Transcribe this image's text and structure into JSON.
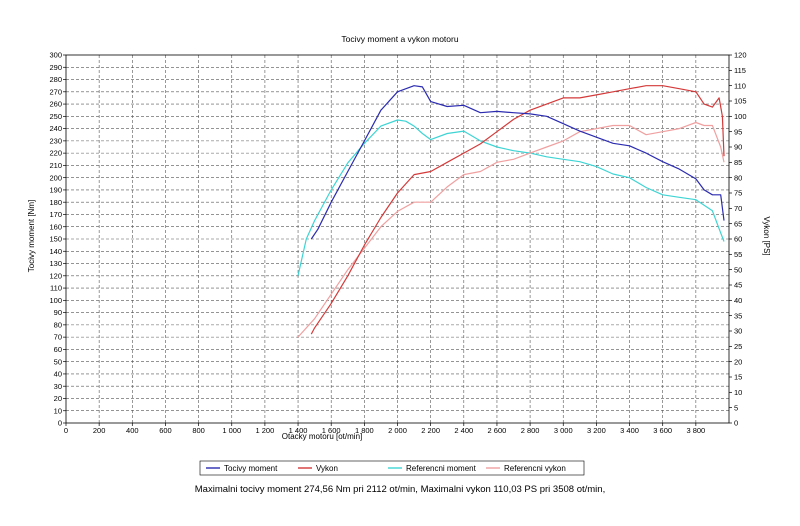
{
  "summary": "Maximalni tocivy moment 274,56 Nm pri 2112 ot/min,  Maximalni vykon 110,03 PS pri 3508 ot/min,",
  "chart_data": {
    "type": "line",
    "title": "Tocivy moment a vykon motoru",
    "xlabel": "Otacky motoru [ot/min]",
    "ylabel_left": "Tocivy moment [Nm]",
    "ylabel_right": "Vykon [PS]",
    "xlim": [
      0,
      4000
    ],
    "ylim_left": [
      0,
      300
    ],
    "ylim_right": [
      0,
      120
    ],
    "x_ticks": [
      0,
      200,
      400,
      600,
      800,
      1000,
      1200,
      1400,
      1600,
      1800,
      2000,
      2200,
      2400,
      2600,
      2800,
      3000,
      3200,
      3400,
      3600,
      3800
    ],
    "x_tick_labels": [
      "0",
      "200",
      "400",
      "600",
      "800",
      "1 000",
      "1 200",
      "1 400",
      "1 600",
      "1 800",
      "2 000",
      "2 200",
      "2 400",
      "2 600",
      "2 800",
      "3 000",
      "3 200",
      "3 400",
      "3 600",
      "3 800"
    ],
    "grid": true,
    "legend_position": "bottom",
    "series": [
      {
        "name": "Tocivy moment",
        "axis": "left",
        "color": "#2b2bb0",
        "x": [
          1480,
          1520,
          1600,
          1700,
          1800,
          1900,
          2000,
          2100,
          2150,
          2200,
          2300,
          2400,
          2500,
          2600,
          2700,
          2800,
          2900,
          3000,
          3100,
          3200,
          3300,
          3400,
          3500,
          3600,
          3700,
          3800,
          3850,
          3900,
          3950,
          3970
        ],
        "y": [
          150,
          158,
          180,
          205,
          230,
          255,
          270,
          275,
          274,
          262,
          258,
          259,
          253,
          254,
          253,
          252,
          250,
          244,
          238,
          233,
          228,
          226,
          220,
          213,
          207,
          199,
          190,
          186,
          186,
          165
        ]
      },
      {
        "name": "Vykon",
        "axis": "right",
        "color": "#d43a3a",
        "x": [
          1480,
          1500,
          1600,
          1700,
          1800,
          1900,
          2000,
          2100,
          2200,
          2300,
          2400,
          2500,
          2600,
          2700,
          2800,
          2900,
          3000,
          3100,
          3200,
          3300,
          3400,
          3500,
          3600,
          3700,
          3800,
          3850,
          3900,
          3940,
          3960,
          3970
        ],
        "y": [
          29,
          31,
          39,
          48,
          58,
          67,
          75,
          81,
          82,
          85,
          88,
          91,
          95,
          99,
          102,
          104,
          106,
          106,
          107,
          108,
          109,
          110,
          110,
          109,
          108,
          104,
          103,
          106,
          100,
          87
        ]
      },
      {
        "name": "Referencni moment",
        "axis": "left",
        "color": "#3fd4d4",
        "x": [
          1400,
          1450,
          1500,
          1600,
          1700,
          1800,
          1900,
          2000,
          2050,
          2100,
          2150,
          2200,
          2300,
          2400,
          2500,
          2600,
          2700,
          2800,
          2900,
          3000,
          3100,
          3200,
          3300,
          3400,
          3500,
          3600,
          3700,
          3800,
          3900,
          3950,
          3970
        ],
        "y": [
          120,
          150,
          165,
          190,
          212,
          228,
          242,
          247,
          246,
          242,
          236,
          231,
          236,
          238,
          230,
          225,
          222,
          220,
          217,
          215,
          213,
          209,
          203,
          200,
          192,
          186,
          184,
          182,
          173,
          155,
          148
        ]
      },
      {
        "name": "Referencni vykon",
        "axis": "right",
        "color": "#f0a0a0",
        "x": [
          1400,
          1500,
          1600,
          1700,
          1800,
          1900,
          2000,
          2100,
          2200,
          2300,
          2400,
          2500,
          2600,
          2700,
          2800,
          2900,
          3000,
          3100,
          3200,
          3300,
          3400,
          3500,
          3600,
          3700,
          3800,
          3850,
          3900,
          3950,
          3970
        ],
        "y": [
          28,
          34,
          42,
          50,
          57,
          64,
          69,
          72,
          72,
          77,
          81,
          82,
          85,
          86,
          88,
          90,
          92,
          95,
          96,
          97,
          97,
          94,
          95,
          96,
          98,
          97,
          97,
          90,
          85
        ]
      }
    ]
  }
}
